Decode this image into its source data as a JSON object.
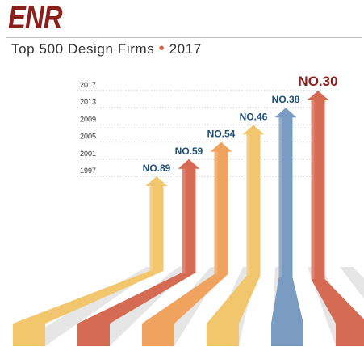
{
  "header": {
    "logo_text": "ENR",
    "title": "Top 500 Design Firms",
    "separator": "•",
    "year": "2017"
  },
  "colors": {
    "logo": "#8a1f1b",
    "accent_dot": "#d25b45",
    "rank_text": "#1f4e79",
    "axis_text": "#333333",
    "gridline": "#c0c0c0",
    "floor_stripe": "#e6e6e6"
  },
  "chart_data": {
    "type": "bar",
    "title": "Top 500 Design Firms • 2017",
    "xlabel": "",
    "ylabel": "",
    "y_tick_labels": [
      "2017",
      "2013",
      "2009",
      "2005",
      "2001",
      "1997"
    ],
    "categories": [
      "1997",
      "2001",
      "2005",
      "2009",
      "2013",
      "2017"
    ],
    "values": [
      89,
      59,
      54,
      46,
      38,
      30
    ],
    "value_labels": [
      "NO.89",
      "NO.59",
      "NO.54",
      "NO.46",
      "NO.38",
      "NO.30"
    ],
    "bar_colors": [
      "#f2c66d",
      "#d56b53",
      "#f0a35e",
      "#f2c66d",
      "#7b9cc2",
      "#d56b53"
    ],
    "value_meaning": "ENR Top 500 Design Firms rank by year",
    "grid": true,
    "legend": "none"
  }
}
